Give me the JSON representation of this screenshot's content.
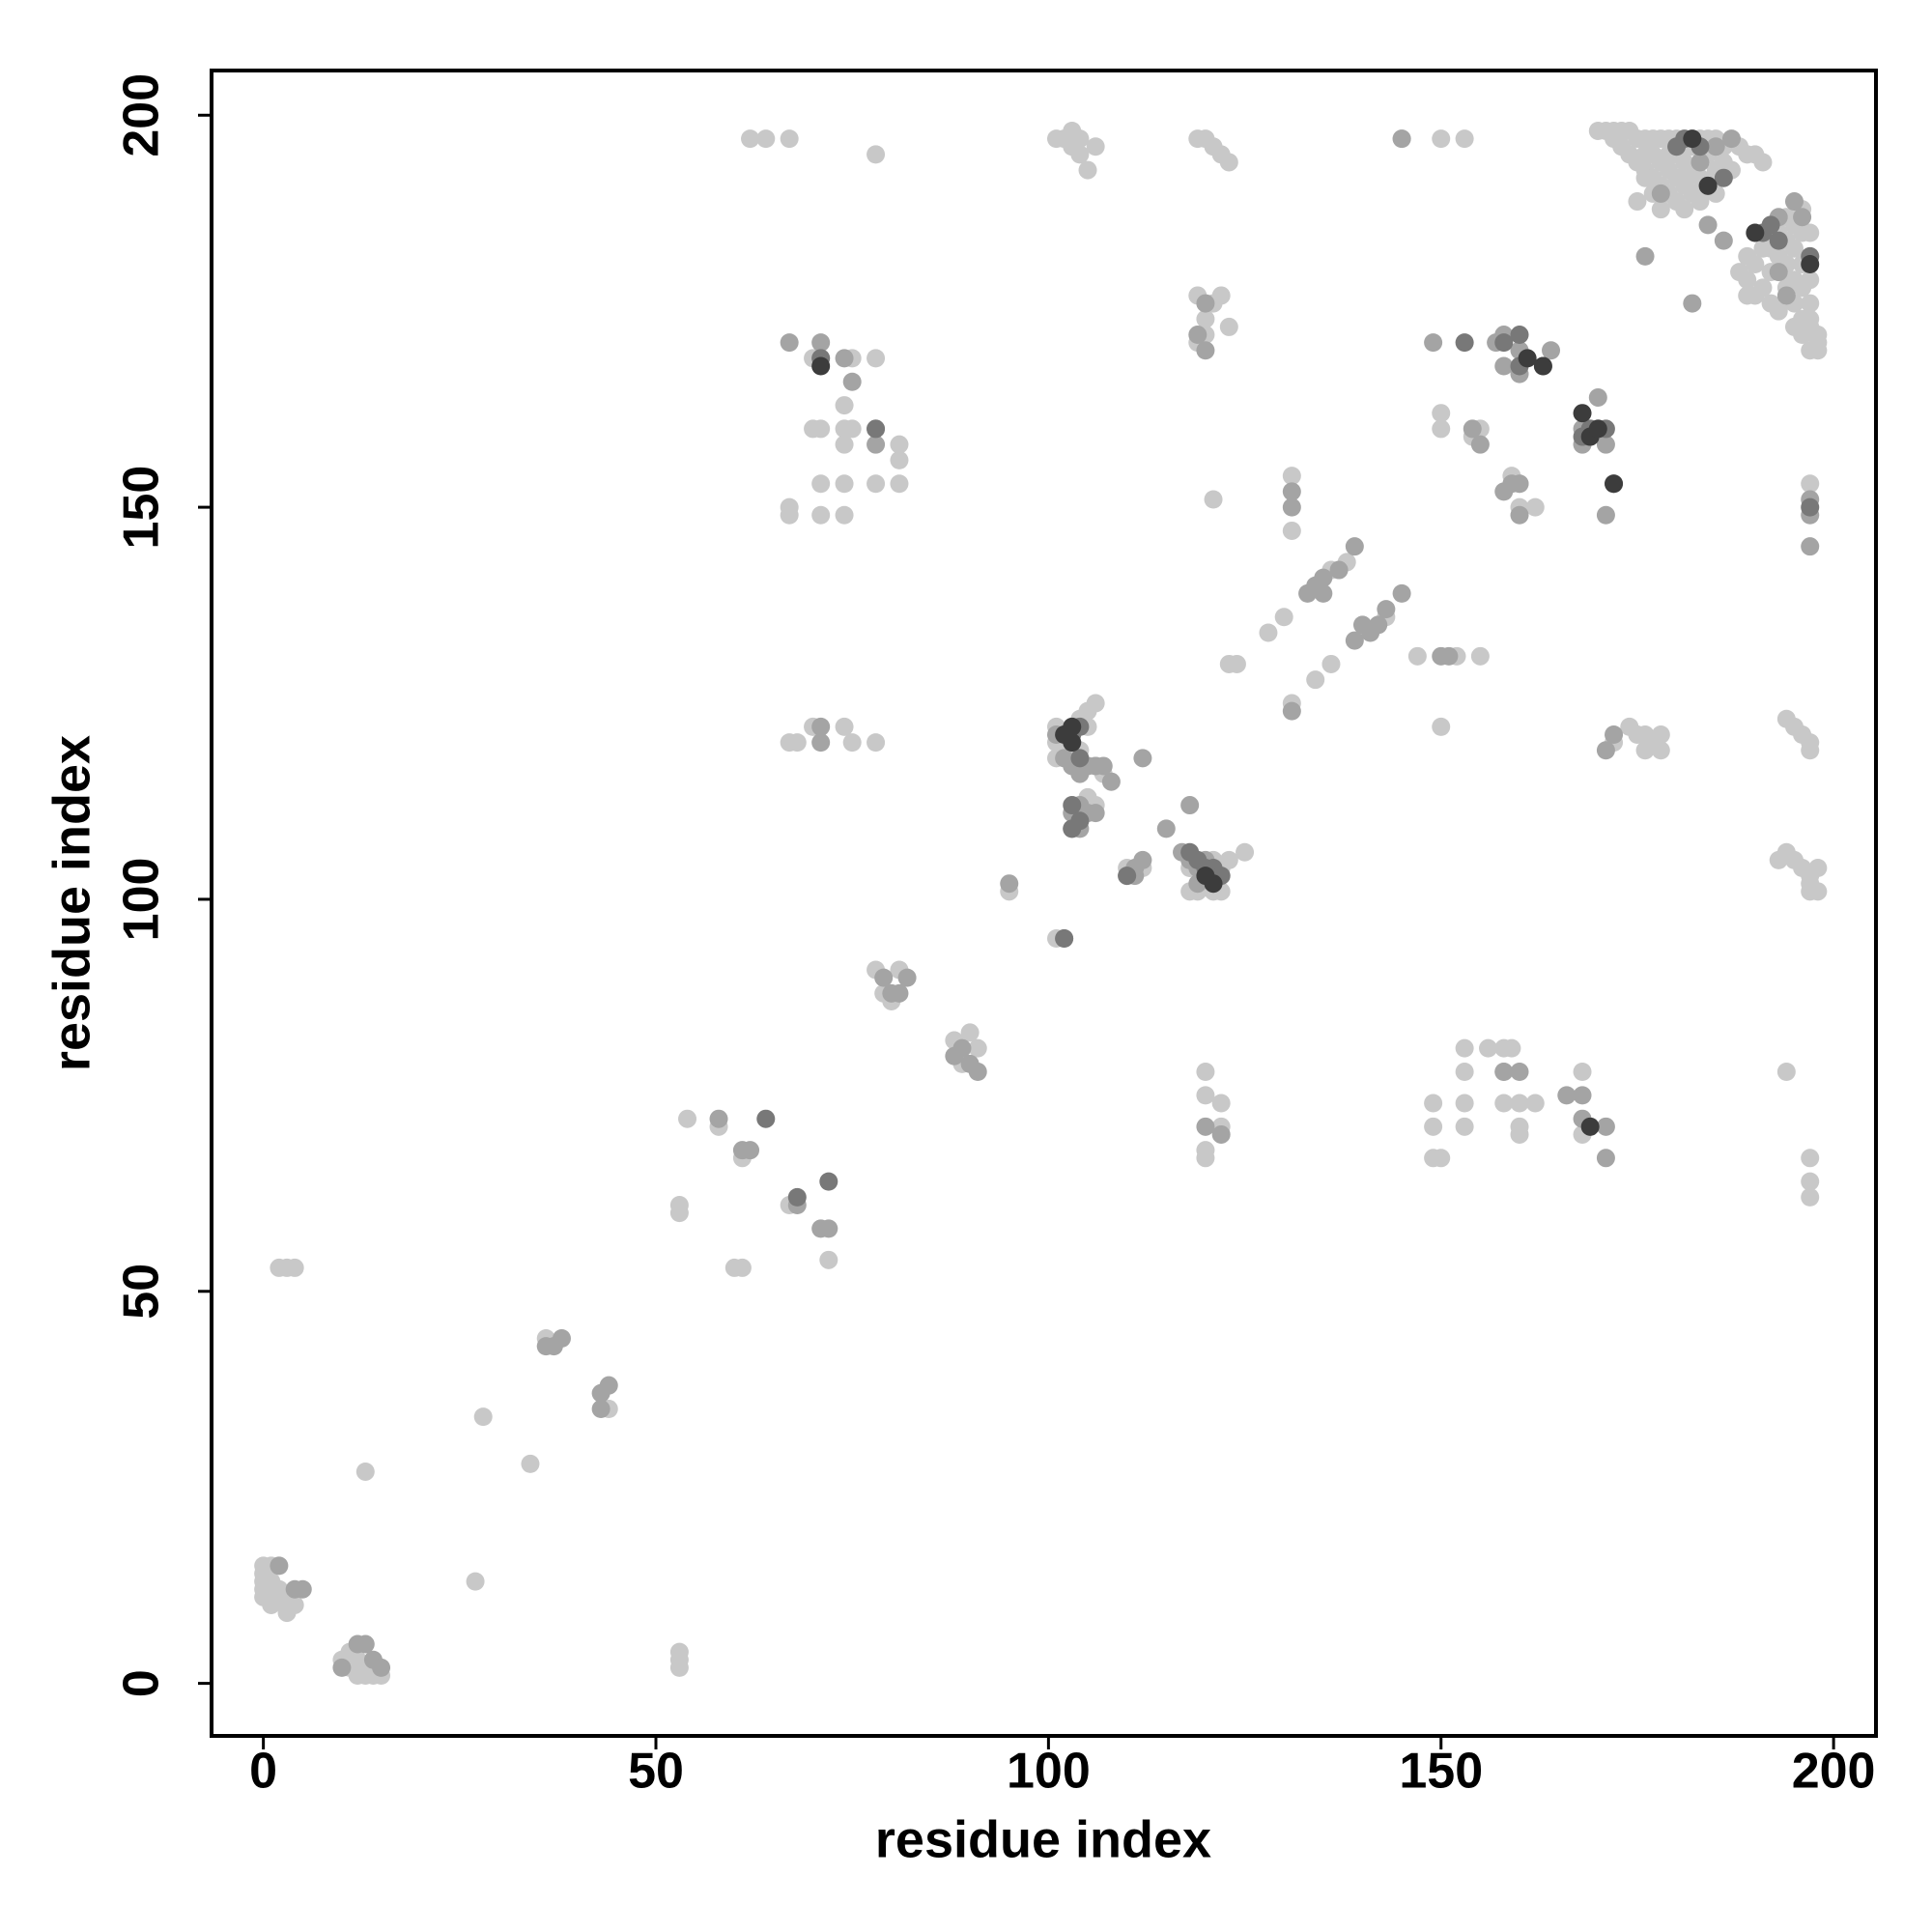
{
  "chart_data": {
    "type": "scatter",
    "xlabel": "residue index",
    "ylabel": "residue index",
    "xlim": [
      -6.6,
      205.4
    ],
    "ylim": [
      -6.7,
      205.7
    ],
    "xticks": [
      0,
      50,
      100,
      150,
      200
    ],
    "yticks": [
      0,
      50,
      100,
      150,
      200
    ],
    "series": [
      {
        "color": "#c8c8c8",
        "x": [
          0,
          0,
          0,
          0,
          0,
          1,
          1,
          2,
          2,
          3,
          3,
          4,
          1,
          2,
          3,
          4,
          13,
          27,
          28,
          34,
          10,
          11,
          11,
          12,
          12,
          13,
          14,
          15,
          13,
          53,
          53,
          53,
          53,
          53,
          54,
          36,
          44,
          58,
          61,
          60,
          61,
          67,
          72,
          62,
          64,
          67,
          78,
          67,
          67,
          71,
          74,
          71,
          74,
          78,
          81,
          70,
          71,
          74,
          75,
          74,
          74,
          78,
          81,
          81,
          70,
          75,
          67,
          68,
          70,
          74,
          75,
          78,
          78,
          79,
          80,
          81,
          89,
          88,
          90,
          91,
          95,
          101,
          101,
          102,
          103,
          103,
          104,
          105,
          106,
          104,
          101,
          101,
          101,
          103,
          104,
          105,
          105,
          106,
          104,
          102,
          106,
          107,
          105,
          106,
          104,
          110,
          112,
          118,
          119,
          120,
          121,
          122,
          121,
          122,
          123,
          125,
          118,
          123,
          124,
          119,
          120,
          121,
          122,
          123,
          121,
          119,
          120,
          120,
          119,
          121,
          123,
          122,
          120,
          120,
          122,
          122,
          120,
          120,
          128,
          130,
          131,
          131,
          131,
          134,
          136,
          136,
          138,
          143,
          147,
          149,
          149,
          149,
          150,
          150,
          150,
          150,
          152,
          155,
          153,
          153,
          153,
          153,
          154,
          155,
          156,
          158,
          158,
          158,
          159,
          160,
          160,
          160,
          162,
          160,
          162,
          160,
          159,
          145,
          150,
          153,
          168,
          168,
          172,
          174,
          175,
          176,
          177,
          178,
          178,
          176,
          194,
          195,
          196,
          197,
          197,
          193,
          194,
          195,
          196,
          197,
          197,
          198,
          198,
          197,
          194,
          197,
          197,
          197,
          197,
          170,
          171,
          172,
          173,
          174,
          175,
          176,
          177,
          178,
          179,
          180,
          181,
          183,
          184,
          185,
          186,
          188,
          189,
          190,
          191,
          172,
          173,
          174,
          175,
          176,
          177,
          178,
          179,
          180,
          181,
          177,
          178,
          179,
          180,
          181,
          182,
          183,
          180,
          181,
          182,
          183,
          184,
          185,
          184,
          186,
          187,
          176,
          177,
          178,
          175,
          176,
          179,
          182,
          183,
          185,
          181,
          188,
          189,
          189,
          190,
          190,
          191,
          191,
          192,
          192,
          193,
          193,
          193,
          194,
          194,
          194,
          194,
          195,
          195,
          195,
          195,
          196,
          196,
          196,
          196,
          196,
          197,
          197,
          197,
          197,
          197,
          198,
          198,
          197,
          198,
          197,
          191,
          192,
          189,
          196,
          195
        ],
        "y": [
          15,
          14,
          13,
          12,
          11,
          10,
          13,
          11,
          12,
          9,
          10,
          10,
          15,
          53,
          53,
          53,
          27,
          13,
          34,
          28,
          3,
          2,
          4,
          1,
          3,
          1,
          1,
          1,
          2,
          2,
          3,
          4,
          60,
          61,
          72,
          44,
          35,
          71,
          53,
          53,
          67,
          61,
          54,
          197,
          197,
          197,
          195,
          149,
          150,
          149,
          149,
          153,
          153,
          153,
          153,
          160,
          160,
          160,
          160,
          158,
          163,
          169,
          156,
          158,
          169,
          169,
          120,
          120,
          122,
          122,
          120,
          120,
          91,
          88,
          87,
          91,
          79,
          82,
          83,
          81,
          101,
          95,
          197,
          197,
          196,
          198,
          195,
          193,
          196,
          197,
          118,
          120,
          122,
          120,
          119,
          122,
          124,
          125,
          123,
          119,
          117,
          116,
          113,
          112,
          110,
          104,
          104,
          101,
          101,
          102,
          101,
          101,
          105,
          104,
          105,
          106,
          104,
          130,
          130,
          197,
          197,
          196,
          195,
          194,
          151,
          171,
          172,
          174,
          177,
          176,
          173,
          177,
          78,
          75,
          74,
          71,
          68,
          67,
          134,
          136,
          154,
          147,
          125,
          128,
          130,
          142,
          143,
          136,
          131,
          74,
          71,
          67,
          67,
          122,
          160,
          162,
          131,
          131,
          81,
          78,
          74,
          71,
          159,
          160,
          81,
          81,
          74,
          78,
          81,
          74,
          71,
          70,
          74,
          150,
          150,
          153,
          154,
          197,
          197,
          197,
          78,
          70,
          120,
          122,
          121,
          121,
          120,
          121,
          119,
          119,
          123,
          122,
          121,
          120,
          119,
          105,
          106,
          105,
          104,
          103,
          102,
          101,
          104,
          101,
          78,
          67,
          64,
          62,
          153,
          198,
          198,
          198,
          198,
          198,
          197,
          197,
          197,
          197,
          197,
          197,
          196,
          197,
          197,
          197,
          196,
          196,
          195,
          195,
          194,
          197,
          196,
          195,
          194,
          193,
          192,
          191,
          190,
          189,
          188,
          195,
          194,
          193,
          192,
          191,
          190,
          189,
          195,
          194,
          193,
          192,
          191,
          193,
          195,
          194,
          193,
          195,
          190,
          188,
          189,
          192,
          195,
          196,
          194,
          190,
          192,
          180,
          179,
          182,
          177,
          181,
          178,
          183,
          176,
          180,
          182,
          185,
          175,
          178,
          181,
          184,
          187,
          176,
          179,
          183,
          186,
          174,
          178,
          181,
          185,
          188,
          173,
          176,
          179,
          182,
          185,
          172,
          171,
          170,
          170,
          174,
          185,
          183,
          177,
          172,
          173
        ]
      },
      {
        "color": "#a4a4a4",
        "x": [
          2,
          4,
          5,
          13,
          12,
          14,
          15,
          10,
          36,
          38,
          37,
          43,
          44,
          43,
          62,
          61,
          58,
          68,
          71,
          72,
          67,
          71,
          71,
          74,
          75,
          78,
          78,
          71,
          71,
          79,
          80,
          81,
          82,
          88,
          89,
          90,
          91,
          95,
          102,
          101,
          102,
          103,
          104,
          105,
          106,
          107,
          103,
          104,
          105,
          106,
          103,
          104,
          108,
          110,
          111,
          112,
          111,
          115,
          117,
          118,
          118,
          112,
          119,
          120,
          119,
          121,
          119,
          120,
          120,
          122,
          120,
          131,
          131,
          131,
          133,
          134,
          135,
          139,
          137,
          140,
          141,
          139,
          142,
          143,
          145,
          135,
          150,
          151,
          149,
          155,
          154,
          158,
          159,
          160,
          160,
          160,
          158,
          157,
          158,
          160,
          164,
          158,
          160,
          166,
          168,
          168,
          171,
          171,
          168,
          168,
          170,
          171,
          171,
          170,
          172,
          171,
          145,
          176,
          178,
          182,
          184,
          186,
          183,
          185,
          187,
          197,
          197,
          197,
          193,
          194,
          196,
          195,
          193
        ],
        "y": [
          15,
          12,
          12,
          5,
          5,
          3,
          2,
          2,
          43,
          44,
          43,
          37,
          38,
          35,
          68,
          68,
          72,
          61,
          58,
          58,
          171,
          171,
          169,
          169,
          166,
          160,
          158,
          122,
          120,
          90,
          88,
          88,
          90,
          80,
          81,
          79,
          78,
          102,
          95,
          121,
          118,
          117,
          116,
          117,
          117,
          117,
          111,
          112,
          111,
          111,
          109,
          109,
          115,
          103,
          104,
          105,
          103,
          109,
          106,
          105,
          112,
          118,
          104,
          105,
          102,
          103,
          172,
          170,
          176,
          70,
          71,
          150,
          152,
          124,
          139,
          140,
          141,
          145,
          142,
          135,
          134,
          133,
          135,
          137,
          139,
          139,
          131,
          131,
          171,
          158,
          160,
          152,
          153,
          149,
          153,
          78,
          78,
          171,
          172,
          170,
          170,
          168,
          167,
          75,
          75,
          72,
          67,
          71,
          160,
          158,
          160,
          158,
          149,
          164,
          121,
          119,
          197,
          182,
          190,
          176,
          186,
          184,
          194,
          196,
          197,
          145,
          149,
          151,
          180,
          177,
          187,
          189,
          187
        ]
      },
      {
        "color": "#787878",
        "x": [
          64,
          72,
          68,
          71,
          78,
          102,
          103,
          104,
          103,
          110,
          118,
          119,
          120,
          153,
          158,
          160,
          160,
          163,
          168,
          169,
          171,
          172,
          180,
          181,
          183,
          186,
          191,
          192,
          193,
          197,
          197,
          104,
          103,
          104,
          121,
          122
        ],
        "y": [
          72,
          64,
          62,
          169,
          160,
          95,
          112,
          110,
          109,
          103,
          106,
          105,
          104,
          171,
          171,
          168,
          172,
          168,
          159,
          160,
          160,
          153,
          196,
          197,
          196,
          192,
          185,
          186,
          184,
          182,
          150,
          122,
          121,
          118,
          104,
          103
        ]
      },
      {
        "color": "#3c3c3c",
        "x": [
          71,
          102,
          103,
          103,
          121,
          120,
          161,
          163,
          168,
          169,
          169,
          182,
          184,
          190,
          197,
          172,
          170
        ],
        "y": [
          168,
          121,
          120,
          122,
          102,
          103,
          169,
          168,
          162,
          159,
          71,
          197,
          191,
          185,
          181,
          153,
          160
        ]
      }
    ]
  }
}
